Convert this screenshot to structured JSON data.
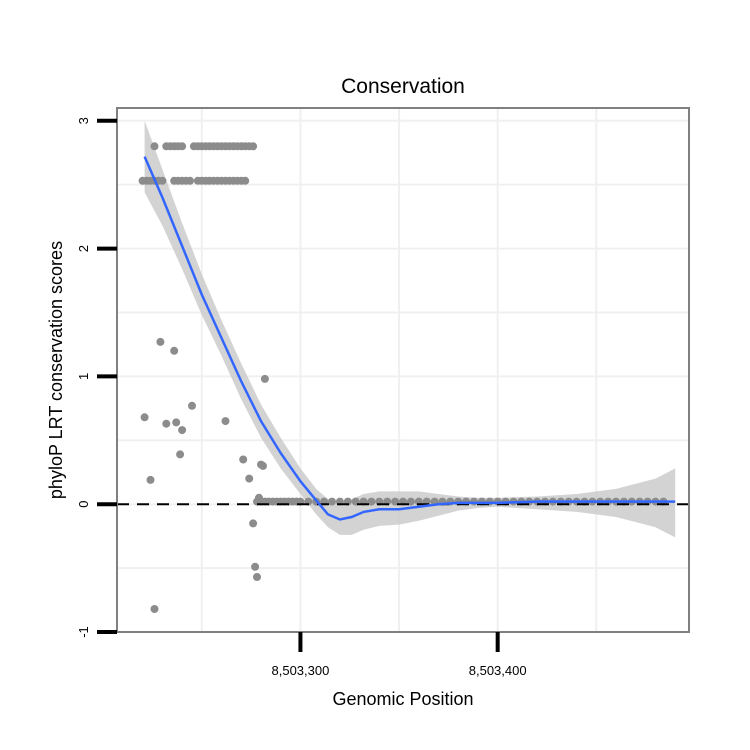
{
  "chart_data": {
    "type": "scatter",
    "title": "Conservation",
    "xlabel": "Genomic Position",
    "ylabel": "phyloP LRT conservation scores",
    "xlim": [
      8503207,
      8503497
    ],
    "ylim": [
      -1,
      3.1
    ],
    "x_ticks": [
      {
        "value": 8503300,
        "label": "8,503,300"
      },
      {
        "value": 8503400,
        "label": "8,503,400"
      }
    ],
    "y_ticks": [
      {
        "value": -1,
        "label": "-1"
      },
      {
        "value": 0,
        "label": "0"
      },
      {
        "value": 1,
        "label": "1"
      },
      {
        "value": 2,
        "label": "2"
      },
      {
        "value": 3,
        "label": "3"
      }
    ],
    "grid": true,
    "reference_line": {
      "y": 0,
      "style": "dashed",
      "color": "#000000"
    },
    "colors": {
      "points": "#8c8c8c",
      "smooth_line": "#3366ff",
      "confidence_band": "#c8c8c8",
      "panel_border": "#808080",
      "grid": "#f0f0f0"
    },
    "series": [
      {
        "name": "phyloP scores",
        "kind": "points",
        "x": [
          8503220,
          8503222,
          8503224,
          8503226,
          8503228,
          8503230,
          8503236,
          8503238,
          8503240,
          8503242,
          8503244,
          8503248,
          8503250,
          8503252,
          8503254,
          8503256,
          8503258,
          8503260,
          8503262,
          8503264,
          8503266,
          8503268,
          8503270,
          8503272,
          8503226,
          8503232,
          8503234,
          8503236,
          8503238,
          8503240,
          8503246,
          8503248,
          8503250,
          8503252,
          8503254,
          8503256,
          8503258,
          8503260,
          8503262,
          8503264,
          8503266,
          8503268,
          8503270,
          8503272,
          8503274,
          8503276,
          8503278,
          8503280,
          8503282,
          8503284,
          8503286,
          8503288,
          8503290,
          8503292,
          8503294,
          8503296,
          8503298,
          8503300,
          8503304,
          8503308,
          8503312,
          8503316,
          8503320,
          8503324,
          8503328,
          8503332,
          8503336,
          8503340,
          8503344,
          8503348,
          8503352,
          8503356,
          8503360,
          8503364,
          8503368,
          8503372,
          8503376,
          8503380,
          8503384,
          8503388,
          8503392,
          8503396,
          8503400,
          8503404,
          8503408,
          8503412,
          8503416,
          8503420,
          8503424,
          8503428,
          8503432,
          8503436,
          8503440,
          8503444,
          8503448,
          8503452,
          8503456,
          8503460,
          8503464,
          8503468,
          8503472,
          8503476,
          8503480,
          8503484,
          8503221,
          8503224,
          8503226,
          8503229,
          8503232,
          8503236,
          8503237,
          8503239,
          8503240,
          8503245,
          8503262,
          8503271,
          8503274,
          8503276,
          8503277,
          8503278,
          8503279,
          8503280,
          8503281,
          8503282
        ],
        "y": [
          2.53,
          2.53,
          2.53,
          2.53,
          2.53,
          2.53,
          2.53,
          2.53,
          2.53,
          2.53,
          2.53,
          2.53,
          2.53,
          2.53,
          2.53,
          2.53,
          2.53,
          2.53,
          2.53,
          2.53,
          2.53,
          2.53,
          2.53,
          2.53,
          2.8,
          2.8,
          2.8,
          2.8,
          2.8,
          2.8,
          2.8,
          2.8,
          2.8,
          2.8,
          2.8,
          2.8,
          2.8,
          2.8,
          2.8,
          2.8,
          2.8,
          2.8,
          2.8,
          2.8,
          2.8,
          2.8,
          0.02,
          0.02,
          0.02,
          0.02,
          0.02,
          0.02,
          0.02,
          0.02,
          0.02,
          0.02,
          0.02,
          0.02,
          0.02,
          0.02,
          0.02,
          0.02,
          0.02,
          0.02,
          0.02,
          0.02,
          0.02,
          0.02,
          0.02,
          0.02,
          0.02,
          0.02,
          0.02,
          0.02,
          0.02,
          0.02,
          0.02,
          0.02,
          0.02,
          0.02,
          0.02,
          0.02,
          0.02,
          0.02,
          0.02,
          0.02,
          0.02,
          0.02,
          0.02,
          0.02,
          0.02,
          0.02,
          0.02,
          0.02,
          0.02,
          0.02,
          0.02,
          0.02,
          0.02,
          0.02,
          0.02,
          0.02,
          0.02,
          0.02,
          0.68,
          0.19,
          -0.82,
          1.27,
          0.63,
          1.2,
          0.64,
          0.39,
          0.58,
          0.77,
          0.65,
          0.35,
          0.2,
          -0.15,
          -0.49,
          -0.57,
          0.05,
          0.31,
          0.3,
          0.98
        ]
      },
      {
        "name": "loess fit",
        "kind": "line",
        "x": [
          8503221,
          8503230,
          8503240,
          8503250,
          8503260,
          8503270,
          8503280,
          8503290,
          8503300,
          8503308,
          8503314,
          8503320,
          8503326,
          8503332,
          8503340,
          8503350,
          8503360,
          8503370,
          8503380,
          8503390,
          8503400,
          8503420,
          8503440,
          8503460,
          8503480,
          8503490
        ],
        "y": [
          2.72,
          2.4,
          2.02,
          1.64,
          1.3,
          0.96,
          0.65,
          0.4,
          0.18,
          0.03,
          -0.08,
          -0.12,
          -0.1,
          -0.06,
          -0.04,
          -0.04,
          -0.02,
          0.0,
          0.01,
          0.01,
          0.01,
          0.02,
          0.02,
          0.02,
          0.02,
          0.02
        ],
        "upper": [
          3.0,
          2.62,
          2.2,
          1.8,
          1.44,
          1.1,
          0.78,
          0.52,
          0.28,
          0.12,
          0.04,
          0.0,
          0.04,
          0.08,
          0.1,
          0.1,
          0.1,
          0.08,
          0.06,
          0.05,
          0.05,
          0.06,
          0.08,
          0.12,
          0.2,
          0.28
        ],
        "lower": [
          2.44,
          2.18,
          1.84,
          1.48,
          1.16,
          0.82,
          0.52,
          0.28,
          0.08,
          -0.08,
          -0.18,
          -0.24,
          -0.24,
          -0.2,
          -0.17,
          -0.16,
          -0.13,
          -0.09,
          -0.05,
          -0.03,
          -0.02,
          -0.04,
          -0.06,
          -0.1,
          -0.18,
          -0.26
        ]
      }
    ]
  }
}
